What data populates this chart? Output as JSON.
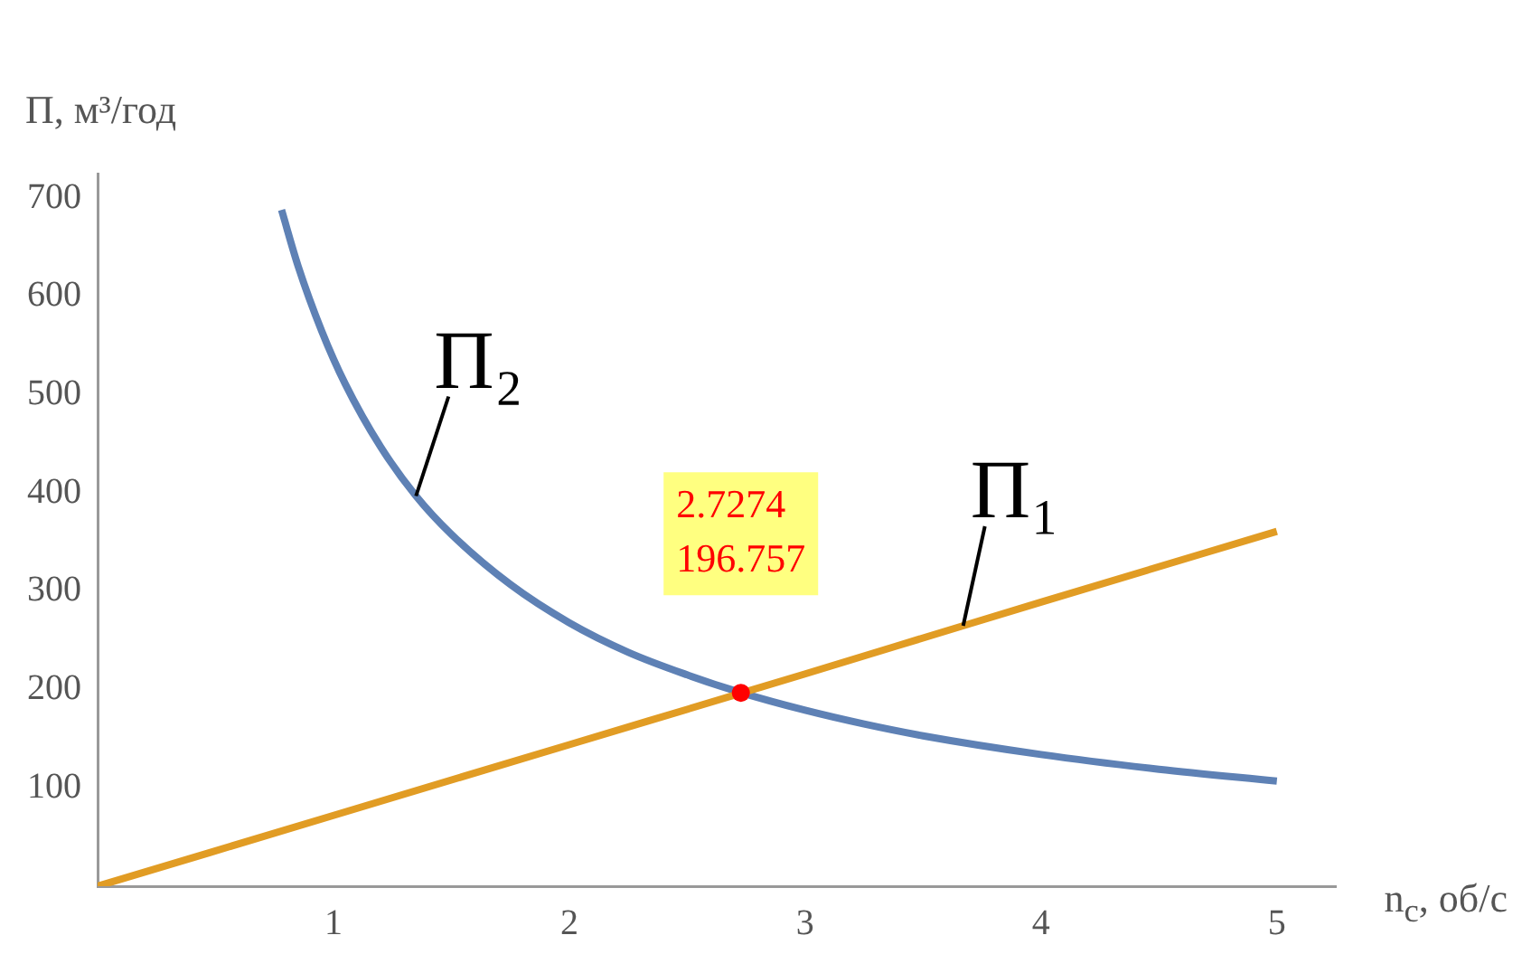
{
  "chart_data": {
    "type": "line",
    "xlabel": "n$_{c}$, об/с",
    "ylabel": "Π, м³/год",
    "xlim": [
      0,
      5.25
    ],
    "ylim": [
      0,
      725
    ],
    "xticks": [
      1,
      2,
      3,
      4,
      5
    ],
    "yticks": [
      100,
      200,
      300,
      400,
      500,
      600,
      700
    ],
    "grid": false,
    "legend": false,
    "series": [
      {
        "name": "Π₁",
        "marker": "none",
        "color": "#e19c24",
        "x": [
          0,
          1,
          2,
          3,
          3.67,
          4,
          5
        ],
        "values": [
          0,
          72,
          144,
          216,
          265,
          289,
          361
        ]
      },
      {
        "name": "Π₂",
        "marker": "none",
        "color": "#5e81b5",
        "x": [
          0.78,
          0.85,
          0.95,
          1.05,
          1.2,
          1.35,
          1.5,
          1.75,
          2,
          2.25,
          2.5,
          2.7274,
          3,
          3.25,
          3.5,
          4,
          4.5,
          5
        ],
        "values": [
          688,
          631,
          565,
          511,
          447,
          397,
          358,
          307,
          268,
          238,
          215,
          197,
          179,
          165,
          153,
          134,
          119,
          107
        ]
      },
      {
        "type": "scatter",
        "marker": "circle",
        "color": "#ff0000",
        "x": [
          2.7274
        ],
        "values": [
          196.757
        ]
      }
    ],
    "annotations": [
      {
        "text": "2.7274\n196.757",
        "x": 2.7274,
        "y": 196.757
      }
    ]
  }
}
